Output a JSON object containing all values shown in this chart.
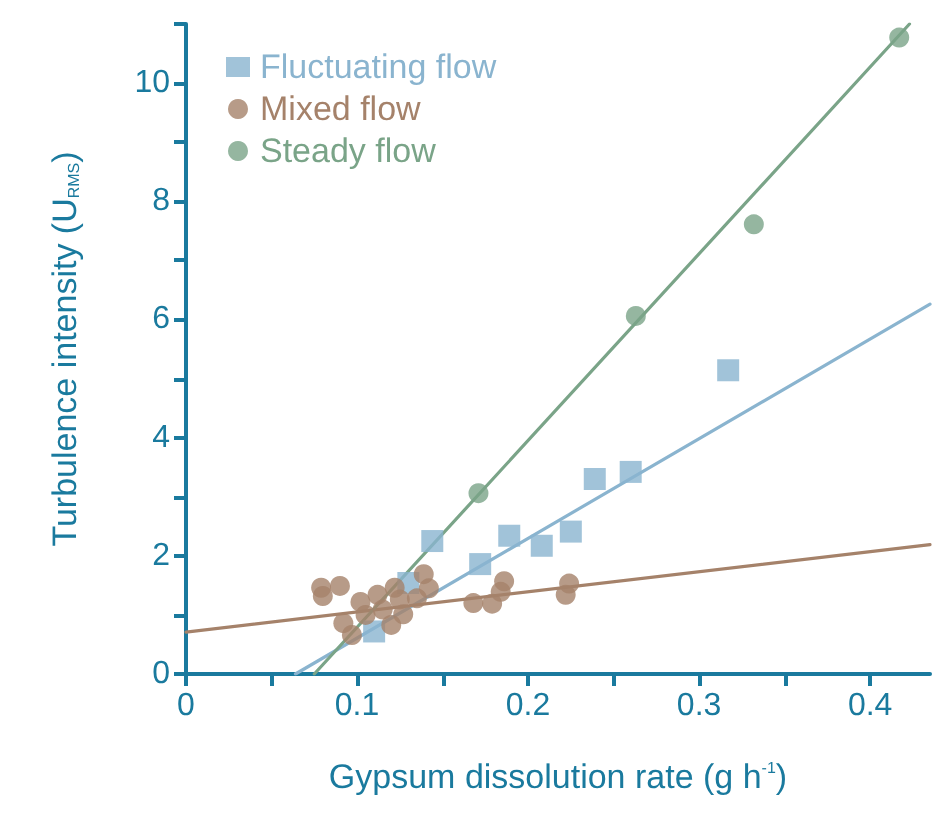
{
  "chart_data": {
    "type": "scatter",
    "xlabel": "Gypsum dissolution rate (g h$^{-1}$)",
    "ylabel": "Turbulence intensity (U$_{RMS}$)",
    "xlim": [
      0,
      0.435
    ],
    "ylim": [
      0,
      11
    ],
    "xticks": [
      0,
      {
        "value": 0.05,
        "label": null
      },
      0.1,
      {
        "value": 0.15,
        "label": null
      },
      0.2,
      {
        "value": 0.25,
        "label": null
      },
      0.3,
      {
        "value": 0.35,
        "label": null
      },
      0.4
    ],
    "yticks": [
      0,
      {
        "value": 1,
        "label": null
      },
      2,
      {
        "value": 3,
        "label": null
      },
      4,
      {
        "value": 5,
        "label": null
      },
      6,
      {
        "value": 7,
        "label": null
      },
      8,
      {
        "value": 9,
        "label": null
      },
      10,
      {
        "value": 11,
        "label": null
      }
    ],
    "grid": false,
    "legend": "top left",
    "series": [
      {
        "name": "Fluctuating flow",
        "color": "#8ab4cf",
        "marker": "square",
        "x": [
          0.11,
          0.13,
          0.144,
          0.172,
          0.189,
          0.208,
          0.225,
          0.239,
          0.26,
          0.317
        ],
        "values": [
          0.72,
          1.54,
          2.25,
          1.86,
          2.34,
          2.17,
          2.41,
          3.3,
          3.42,
          5.14
        ]
      },
      {
        "name": "Mixed flow",
        "color": "#a5826a",
        "marker": "circle",
        "x": [
          0.079,
          0.08,
          0.09,
          0.092,
          0.097,
          0.102,
          0.105,
          0.112,
          0.115,
          0.12,
          0.122,
          0.125,
          0.127,
          0.135,
          0.139,
          0.142,
          0.168,
          0.179,
          0.184,
          0.186,
          0.222,
          0.224
        ],
        "values": [
          1.46,
          1.32,
          1.49,
          0.86,
          0.66,
          1.22,
          1.0,
          1.34,
          1.09,
          0.83,
          1.46,
          1.26,
          1.01,
          1.28,
          1.69,
          1.45,
          1.2,
          1.19,
          1.39,
          1.57,
          1.34,
          1.53
        ]
      },
      {
        "name": "Steady flow",
        "color": "#7aa488",
        "marker": "circle",
        "x": [
          0.171,
          0.263,
          0.332,
          0.417
        ],
        "values": [
          3.06,
          6.06,
          7.61,
          10.77
        ]
      },
      {
        "type": "line",
        "color": "#8ab4cf",
        "marker": "none",
        "x": [
          0.064,
          0.435
        ],
        "values": [
          0,
          6.26
        ]
      },
      {
        "type": "line",
        "color": "#a5826a",
        "marker": "none",
        "x": [
          0,
          0.435
        ],
        "values": [
          0.71,
          2.19
        ]
      },
      {
        "type": "line",
        "color": "#7aa488",
        "marker": "none",
        "x": [
          0.075,
          0.423
        ],
        "values": [
          0,
          11
        ]
      }
    ]
  }
}
